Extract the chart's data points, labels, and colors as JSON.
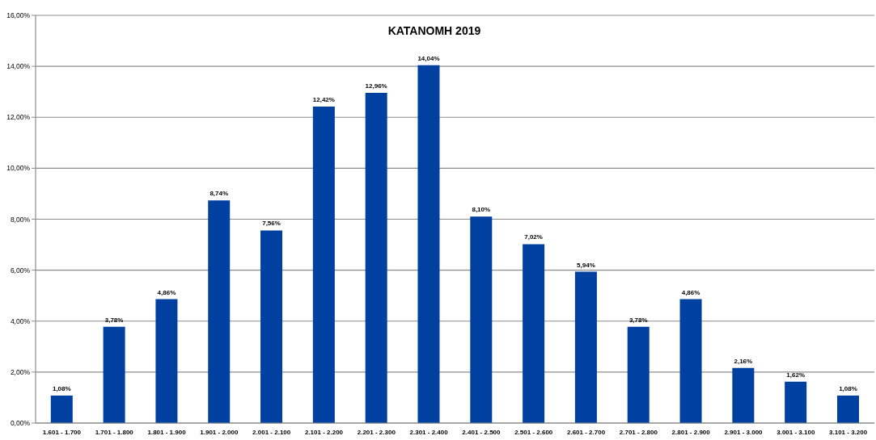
{
  "chart_data": {
    "type": "bar",
    "title": "ΚΑΤΑΝΟΜΗ 2019",
    "categories": [
      "1.601 - 1.700",
      "1.701 - 1.800",
      "1.801 - 1.900",
      "1.901 - 2.000",
      "2.001 - 2.100",
      "2.101 - 2.200",
      "2.201 - 2.300",
      "2.301 - 2.400",
      "2.401 - 2.500",
      "2.501 - 2.600",
      "2.601 - 2.700",
      "2.701 - 2.800",
      "2.801 - 2.900",
      "2.901 - 3.000",
      "3.001 - 3.100",
      "3.101 - 3.200"
    ],
    "values": [
      1.08,
      3.78,
      4.86,
      8.74,
      7.56,
      12.42,
      12.96,
      14.04,
      8.1,
      7.02,
      5.94,
      3.78,
      4.86,
      2.16,
      1.62,
      1.08
    ],
    "value_labels": [
      "1,08%",
      "3,78%",
      "4,86%",
      "8,74%",
      "7,56%",
      "12,42%",
      "12,96%",
      "14,04%",
      "8,10%",
      "7,02%",
      "5,94%",
      "3,78%",
      "4,86%",
      "2,16%",
      "1,62%",
      "1,08%"
    ],
    "color": "#0040a0",
    "ylim": [
      0,
      16
    ],
    "yticks": [
      {
        "value": 0,
        "label": "0,00%"
      },
      {
        "value": 2,
        "label": "2,00%"
      },
      {
        "value": 4,
        "label": "4,00%"
      },
      {
        "value": 6,
        "label": "6,00%"
      },
      {
        "value": 8,
        "label": "8,00%"
      },
      {
        "value": 10,
        "label": "10,00%"
      },
      {
        "value": 12,
        "label": "12,00%"
      },
      {
        "value": 14,
        "label": "14,00%"
      },
      {
        "value": 16,
        "label": "16,00%"
      }
    ],
    "grid": "y"
  }
}
